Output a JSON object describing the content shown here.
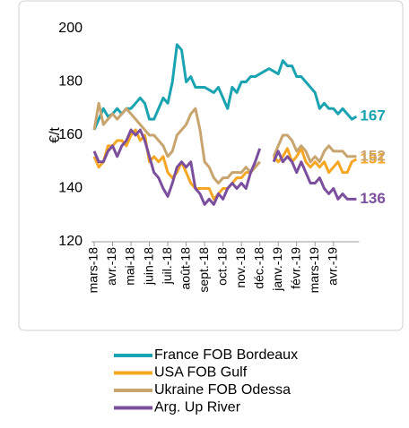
{
  "chart_data": {
    "type": "line",
    "y_label": "€/t",
    "categories": [
      "mars-18",
      null,
      null,
      null,
      "avr.-18",
      null,
      null,
      null,
      "mai-18",
      null,
      null,
      null,
      "juin-18",
      null,
      null,
      null,
      "juil.-18",
      null,
      null,
      null,
      "août-18",
      null,
      null,
      null,
      "sept.-18",
      null,
      null,
      null,
      "oct.-18",
      null,
      null,
      null,
      "nov.-18",
      null,
      null,
      null,
      "déc.-18",
      null,
      null,
      null,
      "janv.-19",
      null,
      null,
      null,
      "févr.-19",
      null,
      null,
      null,
      "mars-19",
      null,
      null,
      null,
      "avr.-19",
      null,
      null,
      null,
      null,
      null
    ],
    "ylim": [
      120,
      200
    ],
    "yticks": [
      120,
      140,
      160,
      180,
      200
    ],
    "series": [
      {
        "name": "France FOB Bordeaux",
        "color": "#1aa3b0",
        "values": [
          162,
          166,
          170,
          167,
          168,
          170,
          168,
          170,
          170,
          172,
          174,
          172,
          166,
          166,
          170,
          174,
          172,
          180,
          194,
          192,
          180,
          182,
          178,
          178,
          178,
          177,
          176,
          178,
          174,
          170,
          178,
          176,
          180,
          180,
          182,
          182,
          183,
          184,
          185,
          184,
          183,
          188,
          186,
          186,
          182,
          182,
          180,
          178,
          176,
          170,
          172,
          170,
          170,
          168,
          170,
          168,
          166,
          167
        ]
      },
      {
        "name": "USA FOB Gulf",
        "color": "#f5a623",
        "values": [
          152,
          148,
          150,
          156,
          156,
          158,
          158,
          156,
          160,
          162,
          158,
          160,
          150,
          152,
          150,
          152,
          146,
          144,
          146,
          150,
          146,
          142,
          140,
          140,
          140,
          140,
          136,
          138,
          140,
          140,
          142,
          144,
          144,
          146,
          146,
          148,
          150,
          null,
          null,
          152,
          150,
          152,
          155,
          150,
          152,
          155,
          150,
          148,
          150,
          148,
          150,
          146,
          148,
          150,
          146,
          146,
          150,
          151
        ]
      },
      {
        "name": "Ukraine FOB Odessa",
        "color": "#c8a46e",
        "values": [
          162,
          172,
          164,
          166,
          168,
          166,
          168,
          170,
          168,
          166,
          164,
          162,
          160,
          160,
          158,
          156,
          152,
          154,
          160,
          162,
          164,
          168,
          170,
          162,
          150,
          148,
          144,
          142,
          144,
          144,
          146,
          146,
          146,
          148,
          146,
          148,
          150,
          null,
          null,
          152,
          156,
          160,
          160,
          158,
          154,
          156,
          154,
          150,
          152,
          150,
          154,
          156,
          154,
          154,
          154,
          152,
          152,
          152
        ]
      },
      {
        "name": "Arg. Up River",
        "color": "#7b4f9e",
        "values": [
          154,
          150,
          150,
          154,
          156,
          152,
          156,
          158,
          162,
          160,
          162,
          158,
          152,
          146,
          144,
          140,
          137,
          142,
          148,
          150,
          148,
          150,
          140,
          138,
          134,
          136,
          134,
          138,
          136,
          140,
          142,
          140,
          142,
          140,
          146,
          150,
          155,
          null,
          null,
          150,
          154,
          150,
          152,
          150,
          146,
          150,
          146,
          142,
          142,
          144,
          140,
          138,
          140,
          136,
          138,
          136,
          136,
          136
        ]
      }
    ]
  }
}
